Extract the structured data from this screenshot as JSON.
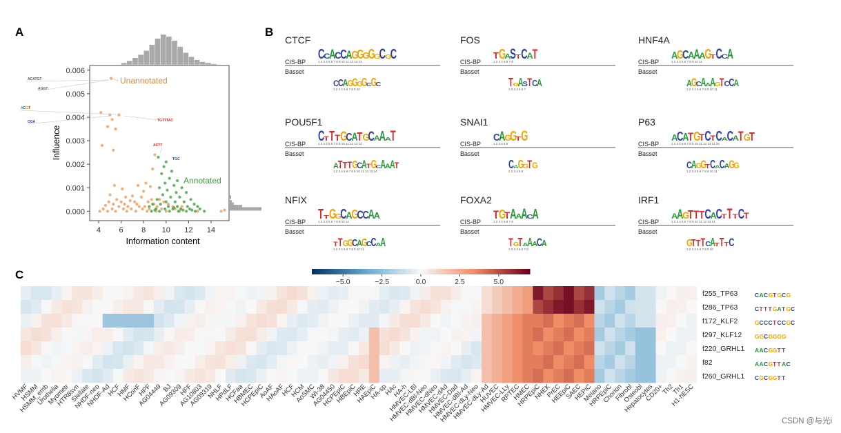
{
  "watermark": "CSDN @与光i",
  "chart_data": [
    {
      "panel": "A",
      "type": "scatter",
      "xlabel": "Information content",
      "ylabel": "Influence",
      "xlim": [
        3.2,
        15.6
      ],
      "ylim": [
        -0.0004,
        0.0062
      ],
      "xticks": [
        4,
        6,
        8,
        10,
        12,
        14
      ],
      "yticks": [
        0.0,
        0.001,
        0.002,
        0.003,
        0.004,
        0.005,
        0.006
      ],
      "ytick_labels": [
        "0.000",
        "0.001",
        "0.002",
        "0.003",
        "0.004",
        "0.005",
        "0.006"
      ],
      "annotations": [
        {
          "text": "Unannotated",
          "color": "#e8853a"
        },
        {
          "text": "Annotated",
          "color": "#3aa035"
        }
      ],
      "series": [
        {
          "name": "Unannotated",
          "color": "#f0a060",
          "points": [
            [
              5.1,
              0.00565
            ],
            [
              4.2,
              0.0042
            ],
            [
              5.0,
              0.0041
            ],
            [
              5.8,
              0.0041
            ],
            [
              5.2,
              0.0039
            ],
            [
              4.8,
              0.0036
            ],
            [
              5.5,
              0.0035
            ],
            [
              4.3,
              0.0028
            ],
            [
              5.3,
              0.0026
            ],
            [
              9.0,
              0.0024
            ],
            [
              8.8,
              0.0018
            ],
            [
              8.2,
              0.0012
            ],
            [
              7.5,
              0.0011
            ],
            [
              8.6,
              0.00105
            ],
            [
              5.4,
              0.0011
            ],
            [
              6.1,
              0.00095
            ],
            [
              8.0,
              0.00085
            ],
            [
              5.0,
              0.0007
            ],
            [
              7.0,
              0.00065
            ],
            [
              6.4,
              0.0006
            ],
            [
              7.8,
              0.0006
            ],
            [
              5.6,
              0.0005
            ],
            [
              8.7,
              0.0005
            ],
            [
              6.8,
              0.00045
            ],
            [
              9.4,
              0.0005
            ],
            [
              4.9,
              0.0004
            ],
            [
              6.0,
              0.0004
            ],
            [
              7.2,
              0.0004
            ],
            [
              8.4,
              0.0004
            ],
            [
              9.8,
              0.0004
            ],
            [
              5.3,
              0.0003
            ],
            [
              6.3,
              0.0003
            ],
            [
              7.4,
              0.0003
            ],
            [
              8.9,
              0.0003
            ],
            [
              10.2,
              0.0003
            ],
            [
              4.6,
              0.00025
            ],
            [
              5.8,
              0.0002
            ],
            [
              6.6,
              0.0002
            ],
            [
              7.6,
              0.0002
            ],
            [
              8.1,
              0.0002
            ],
            [
              9.2,
              0.0002
            ],
            [
              10.6,
              0.0002
            ],
            [
              11.4,
              0.0002
            ],
            [
              4.4,
              0.0001
            ],
            [
              5.2,
              0.0001
            ],
            [
              6.2,
              0.0001
            ],
            [
              6.9,
              0.0001
            ],
            [
              7.9,
              0.0001
            ],
            [
              8.5,
              0.0001
            ],
            [
              9.6,
              0.0001
            ],
            [
              10.8,
              0.0001
            ],
            [
              4.1,
              0.0
            ],
            [
              4.8,
              0.0
            ],
            [
              5.5,
              0.0
            ],
            [
              6.5,
              0.0
            ],
            [
              7.3,
              0.0
            ],
            [
              8.3,
              0.0
            ],
            [
              9.1,
              0.0
            ],
            [
              10.0,
              0.0
            ],
            [
              11.2,
              0.0
            ],
            [
              12.8,
              0.0
            ],
            [
              14.9,
              0.0
            ],
            [
              15.2,
              5e-05
            ]
          ]
        },
        {
          "name": "Annotated",
          "color": "#4aa84a",
          "points": [
            [
              9.3,
              0.0023
            ],
            [
              10.0,
              0.0021
            ],
            [
              9.8,
              0.0019
            ],
            [
              10.5,
              0.0017
            ],
            [
              9.6,
              0.0016
            ],
            [
              10.3,
              0.0014
            ],
            [
              11.0,
              0.0013
            ],
            [
              9.9,
              0.0012
            ],
            [
              10.7,
              0.0011
            ],
            [
              11.4,
              0.001
            ],
            [
              9.4,
              0.001
            ],
            [
              10.1,
              0.0009
            ],
            [
              10.9,
              0.0008
            ],
            [
              11.8,
              0.0008
            ],
            [
              9.7,
              0.0007
            ],
            [
              10.4,
              0.0006
            ],
            [
              11.2,
              0.0006
            ],
            [
              12.2,
              0.0005
            ],
            [
              9.2,
              0.0005
            ],
            [
              10.0,
              0.0004
            ],
            [
              10.8,
              0.0004
            ],
            [
              11.6,
              0.0004
            ],
            [
              12.5,
              0.0003
            ],
            [
              8.8,
              0.0003
            ],
            [
              9.5,
              0.0003
            ],
            [
              10.2,
              0.0002
            ],
            [
              11.0,
              0.0002
            ],
            [
              11.9,
              0.0002
            ],
            [
              12.8,
              0.0002
            ],
            [
              8.5,
              0.0002
            ],
            [
              9.1,
              0.0001
            ],
            [
              9.9,
              0.0001
            ],
            [
              10.6,
              0.0001
            ],
            [
              11.3,
              0.0001
            ],
            [
              12.1,
              0.0001
            ],
            [
              13.0,
              0.0001
            ],
            [
              8.7,
              0.0
            ],
            [
              9.4,
              0.0
            ],
            [
              10.3,
              0.0
            ],
            [
              11.1,
              0.0
            ],
            [
              11.8,
              0.0
            ],
            [
              12.6,
              0.0
            ],
            [
              13.4,
              0.0
            ],
            [
              10.7,
              0.00015
            ],
            [
              11.5,
              5e-05
            ],
            [
              9.0,
              5e-05
            ],
            [
              12.3,
              5e-05
            ]
          ]
        }
      ],
      "hist_top": {
        "edges_start": 6.0,
        "bin_width": 0.5,
        "counts": [
          2,
          4,
          7,
          10,
          14,
          20,
          26,
          30,
          28,
          24,
          18,
          12,
          8,
          5,
          3,
          2,
          1
        ]
      },
      "hist_right": {
        "note": "marginal distribution of influence, peaked near 0"
      }
    },
    {
      "panel": "B",
      "type": "motif_grid",
      "source_labels": [
        "CIS-BP",
        "Basset"
      ],
      "motifs": [
        {
          "name": "CTCF",
          "top": "CCACCAGGGGGCGC",
          "bottom": "CCAGGGGCGC"
        },
        {
          "name": "FOS",
          "top": "TGASTCAT",
          "bottom": "TGASTCA"
        },
        {
          "name": "HNF4A",
          "top": "AGCAAAGTCCA",
          "bottom": "AGCAAAGTCCA"
        },
        {
          "name": "POU5F1",
          "top": "CTTTGCATGCAAAT",
          "bottom": "ATTTGCATGCAAAT"
        },
        {
          "name": "SNAI1",
          "top": "CAGGTG",
          "bottom": "CAGGTG"
        },
        {
          "name": "P63",
          "top": "ACATGTCTCACATGT",
          "bottom": "CAGGTCACAGG"
        },
        {
          "name": "NFIX",
          "top": "TTGGCAGCCAA",
          "bottom": "TTGGCAGCCAA"
        },
        {
          "name": "FOXA2",
          "top": "TGTAAACA",
          "bottom": "TGTAAACA"
        },
        {
          "name": "IRF1",
          "top": "AAGTTTCACTTTCT",
          "bottom": "GTTTCATTTC"
        }
      ]
    },
    {
      "panel": "C",
      "type": "heatmap",
      "colorbar": {
        "range": [
          -7,
          7
        ],
        "ticks": [
          -5.0,
          -2.5,
          0.0,
          2.5,
          5.0
        ],
        "tick_labels": [
          "−5.0",
          "−2.5",
          "0.0",
          "2.5",
          "5.0"
        ]
      },
      "rows": [
        "f255_TP63",
        "f286_TP63",
        "f172_KLF2",
        "f297_KLF12",
        "f220_GRHL1",
        "f82",
        "f260_GRHL1"
      ],
      "cols": [
        "HVMF",
        "HSMM",
        "HSMM_emb",
        "Urothelia",
        "Myometr",
        "HTR8svn",
        "Stellate",
        "NHDF-neo",
        "NHDF-Ad",
        "HCF",
        "HMF",
        "HConF",
        "HPF",
        "AG04449",
        "BJ",
        "AG09309",
        "HFF",
        "AG10803",
        "AG09319",
        "NHLF",
        "HPdLF",
        "HCFaa",
        "HBMEC",
        "HCPEpiC",
        "AoAF",
        "HAoAF",
        "HCF",
        "HCM",
        "AoSMC",
        "WI-38",
        "AG04450",
        "HCPEpiC",
        "HBEpiC",
        "HRE",
        "HAEpiC",
        "HA-sp",
        "HAc",
        "HA-h",
        "HMVEC-LBl",
        "HMVEC-dBl-Neo",
        "HMVEC-dNeo",
        "HMVEC-dAd",
        "HMVEC-Dad",
        "HMVEC-dBl-Ad",
        "HMVEC-dLy-Neo",
        "HMVEC-dLy-Ad",
        "HUVEC",
        "HMVEC-LLy",
        "RPTEC",
        "HMEC",
        "HRPEpiC",
        "NHEK",
        "PrEC",
        "HEEpiC",
        "SAEC",
        "HEPiC",
        "Melano",
        "HRPEpiC",
        "Chorion",
        "Fibrobl",
        "Osteobl",
        "Hepatocytes",
        "CD20+",
        "Th2",
        "Th1",
        "H1-hESC"
      ]
    }
  ]
}
